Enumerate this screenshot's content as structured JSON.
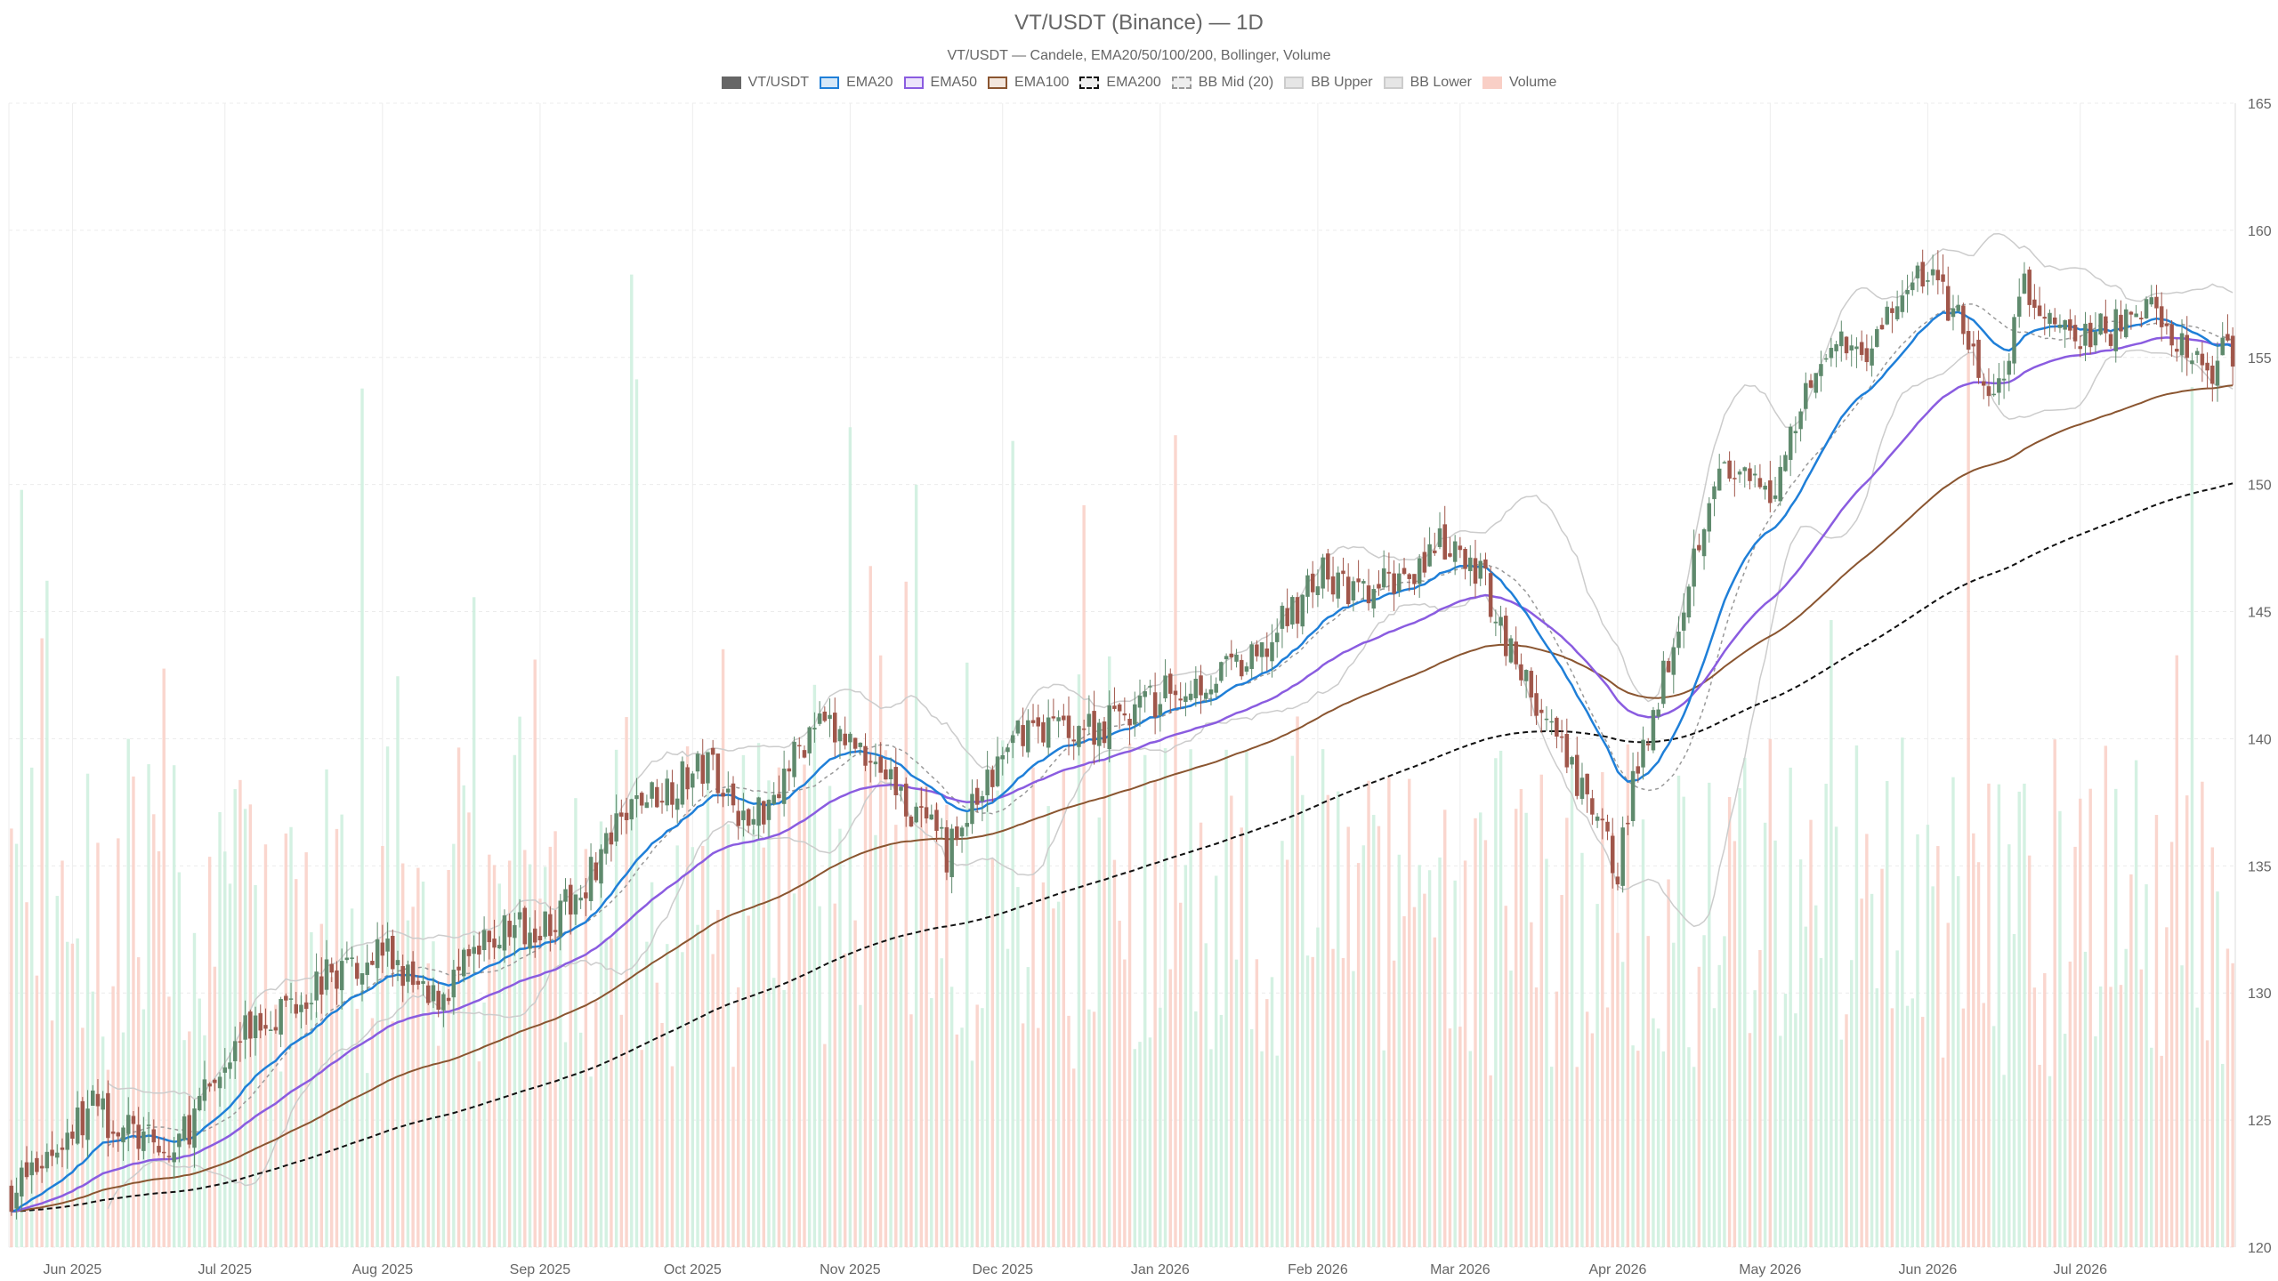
{
  "chart_data": {
    "type": "candlestick",
    "title": "VT/USDT (Binance) — 1D",
    "subtitle": "VT/USDT — Candele, EMA20/50/100/200, Bollinger, Volume",
    "legend": [
      {
        "label": "VT/USDT",
        "fill": "#666666",
        "stroke": "#666666",
        "dash": false
      },
      {
        "label": "EMA20",
        "fill": "#d6e8f8",
        "stroke": "#1f7fd8",
        "dash": false
      },
      {
        "label": "EMA50",
        "fill": "#ece4fb",
        "stroke": "#8a5ce0",
        "dash": false
      },
      {
        "label": "EMA100",
        "fill": "#f3e6dc",
        "stroke": "#8a5530",
        "dash": false
      },
      {
        "label": "EMA200",
        "fill": "#eeeeee",
        "stroke": "#111111",
        "dash": true
      },
      {
        "label": "BB Mid (20)",
        "fill": "#eeeeee",
        "stroke": "#999999",
        "dash": true
      },
      {
        "label": "BB Upper",
        "fill": "#e6e6e6",
        "stroke": "#cccccc",
        "dash": false
      },
      {
        "label": "BB Lower",
        "fill": "#e6e6e6",
        "stroke": "#cccccc",
        "dash": false
      },
      {
        "label": "Volume",
        "fill": "#f9cfc6",
        "stroke": "#f9cfc6",
        "dash": false
      }
    ],
    "y_axis": {
      "min": 120,
      "max": 165,
      "ticks": [
        120,
        125,
        130,
        135,
        140,
        145,
        150,
        155,
        160,
        165
      ],
      "position": "right"
    },
    "x_axis": {
      "labels": [
        "Jun 2025",
        "Jul 2025",
        "Aug 2025",
        "Sep 2025",
        "Oct 2025",
        "Nov 2025",
        "Dec 2025",
        "Jan 2026",
        "Feb 2026",
        "Mar 2026",
        "Apr 2026",
        "May 2026",
        "Jun 2026",
        "Jul 2026"
      ],
      "start_date": "2025-05-20",
      "end_date": "2026-07-31"
    },
    "colors": {
      "up": "#5f8a6d",
      "down": "#a0564a",
      "vol_up": "#cdeedd",
      "vol_down": "#f9cfc6",
      "grid": "#ececec"
    },
    "price_anchors": [
      [
        "2025-05-20",
        122.2
      ],
      [
        "2025-06-05",
        125.5
      ],
      [
        "2025-06-20",
        123.5
      ],
      [
        "2025-07-05",
        128.5
      ],
      [
        "2025-07-20",
        130.5
      ],
      [
        "2025-08-01",
        131.8
      ],
      [
        "2025-08-10",
        129.5
      ],
      [
        "2025-08-25",
        132.5
      ],
      [
        "2025-09-05",
        133.0
      ],
      [
        "2025-09-20",
        137.5
      ],
      [
        "2025-10-05",
        139.0
      ],
      [
        "2025-10-12",
        136.5
      ],
      [
        "2025-10-25",
        140.5
      ],
      [
        "2025-11-05",
        139.5
      ],
      [
        "2025-11-12",
        137.5
      ],
      [
        "2025-11-20",
        135.5
      ],
      [
        "2025-12-05",
        140.5
      ],
      [
        "2025-12-20",
        140.5
      ],
      [
        "2026-01-05",
        142.0
      ],
      [
        "2026-01-20",
        143.0
      ],
      [
        "2026-02-01",
        146.5
      ],
      [
        "2026-02-10",
        145.5
      ],
      [
        "2026-02-25",
        147.5
      ],
      [
        "2026-03-05",
        146.5
      ],
      [
        "2026-03-12",
        143.0
      ],
      [
        "2026-03-22",
        139.0
      ],
      [
        "2026-04-01",
        135.0
      ],
      [
        "2026-04-05",
        139.0
      ],
      [
        "2026-04-12",
        144.0
      ],
      [
        "2026-04-20",
        150.5
      ],
      [
        "2026-05-01",
        149.5
      ],
      [
        "2026-05-10",
        155.0
      ],
      [
        "2026-05-20",
        155.5
      ],
      [
        "2026-06-01",
        158.5
      ],
      [
        "2026-06-08",
        156.0
      ],
      [
        "2026-06-14",
        153.0
      ],
      [
        "2026-06-20",
        157.5
      ],
      [
        "2026-07-01",
        155.5
      ],
      [
        "2026-07-15",
        157.0
      ],
      [
        "2026-07-25",
        154.5
      ],
      [
        "2026-07-31",
        155.3
      ]
    ],
    "volume_range": [
      0,
      1
    ],
    "seed": 7
  }
}
